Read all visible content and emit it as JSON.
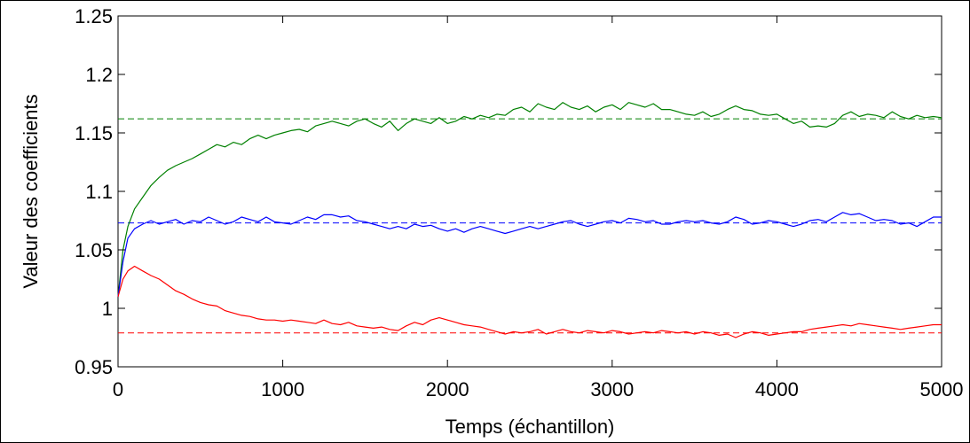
{
  "chart_data": {
    "type": "line",
    "title": "",
    "xlabel": "Temps (échantillon)",
    "ylabel": "Valeur des coefficients",
    "xlim": [
      0,
      5000
    ],
    "ylim": [
      0.95,
      1.25
    ],
    "x_ticks": [
      0,
      1000,
      2000,
      3000,
      4000,
      5000
    ],
    "y_ticks": [
      0.95,
      1.0,
      1.05,
      1.1,
      1.15,
      1.2,
      1.25
    ],
    "x_tick_labels": [
      "0",
      "1000",
      "2000",
      "3000",
      "4000",
      "5000"
    ],
    "y_tick_labels": [
      "0.95",
      "1",
      "1.05",
      "1.1",
      "1.15",
      "1.2",
      "1.25"
    ],
    "grid": false,
    "legend": "none",
    "reference_lines": [
      {
        "y": 1.162,
        "color": "#008000",
        "style": "dashed"
      },
      {
        "y": 1.073,
        "color": "#0000ff",
        "style": "dashed"
      },
      {
        "y": 0.979,
        "color": "#ff0000",
        "style": "dashed"
      }
    ],
    "series": [
      {
        "color": "#008000",
        "x": [
          0,
          30,
          60,
          100,
          150,
          200,
          250,
          300,
          350,
          400,
          450,
          500,
          550,
          600,
          650,
          700,
          750,
          800,
          850,
          900,
          950,
          1000,
          1050,
          1100,
          1150,
          1200,
          1250,
          1300,
          1350,
          1400,
          1450,
          1500,
          1550,
          1600,
          1650,
          1700,
          1750,
          1800,
          1850,
          1900,
          1950,
          2000,
          2050,
          2100,
          2150,
          2200,
          2250,
          2300,
          2350,
          2400,
          2450,
          2500,
          2550,
          2600,
          2650,
          2700,
          2750,
          2800,
          2850,
          2900,
          2950,
          3000,
          3050,
          3100,
          3150,
          3200,
          3250,
          3300,
          3350,
          3400,
          3450,
          3500,
          3550,
          3600,
          3650,
          3700,
          3750,
          3800,
          3850,
          3900,
          3950,
          4000,
          4050,
          4100,
          4150,
          4200,
          4250,
          4300,
          4350,
          4400,
          4450,
          4500,
          4550,
          4600,
          4650,
          4700,
          4750,
          4800,
          4850,
          4900,
          4950,
          5000
        ],
        "y": [
          1.01,
          1.05,
          1.07,
          1.085,
          1.095,
          1.105,
          1.112,
          1.118,
          1.122,
          1.125,
          1.128,
          1.132,
          1.136,
          1.14,
          1.138,
          1.142,
          1.14,
          1.145,
          1.148,
          1.145,
          1.148,
          1.15,
          1.152,
          1.153,
          1.151,
          1.156,
          1.158,
          1.16,
          1.158,
          1.156,
          1.16,
          1.162,
          1.158,
          1.155,
          1.16,
          1.152,
          1.158,
          1.162,
          1.16,
          1.158,
          1.163,
          1.158,
          1.16,
          1.164,
          1.162,
          1.165,
          1.163,
          1.166,
          1.165,
          1.17,
          1.172,
          1.168,
          1.175,
          1.172,
          1.17,
          1.176,
          1.172,
          1.17,
          1.173,
          1.168,
          1.172,
          1.174,
          1.17,
          1.176,
          1.174,
          1.172,
          1.175,
          1.17,
          1.17,
          1.168,
          1.166,
          1.165,
          1.168,
          1.164,
          1.166,
          1.17,
          1.173,
          1.17,
          1.169,
          1.166,
          1.165,
          1.166,
          1.162,
          1.158,
          1.16,
          1.155,
          1.156,
          1.155,
          1.158,
          1.165,
          1.168,
          1.164,
          1.166,
          1.165,
          1.163,
          1.168,
          1.164,
          1.162,
          1.165,
          1.163,
          1.164,
          1.163
        ]
      },
      {
        "color": "#0000ff",
        "x": [
          0,
          30,
          60,
          100,
          150,
          200,
          250,
          300,
          350,
          400,
          450,
          500,
          550,
          600,
          650,
          700,
          750,
          800,
          850,
          900,
          950,
          1000,
          1050,
          1100,
          1150,
          1200,
          1250,
          1300,
          1350,
          1400,
          1450,
          1500,
          1550,
          1600,
          1650,
          1700,
          1750,
          1800,
          1850,
          1900,
          1950,
          2000,
          2050,
          2100,
          2150,
          2200,
          2250,
          2300,
          2350,
          2400,
          2450,
          2500,
          2550,
          2600,
          2650,
          2700,
          2750,
          2800,
          2850,
          2900,
          2950,
          3000,
          3050,
          3100,
          3150,
          3200,
          3250,
          3300,
          3350,
          3400,
          3450,
          3500,
          3550,
          3600,
          3650,
          3700,
          3750,
          3800,
          3850,
          3900,
          3950,
          4000,
          4050,
          4100,
          4150,
          4200,
          4250,
          4300,
          4350,
          4400,
          4450,
          4500,
          4550,
          4600,
          4650,
          4700,
          4750,
          4800,
          4850,
          4900,
          4950,
          5000
        ],
        "y": [
          1.01,
          1.04,
          1.06,
          1.068,
          1.072,
          1.075,
          1.072,
          1.074,
          1.076,
          1.072,
          1.075,
          1.074,
          1.078,
          1.075,
          1.072,
          1.074,
          1.078,
          1.076,
          1.074,
          1.078,
          1.074,
          1.073,
          1.072,
          1.075,
          1.078,
          1.076,
          1.08,
          1.08,
          1.078,
          1.079,
          1.075,
          1.074,
          1.072,
          1.07,
          1.068,
          1.07,
          1.068,
          1.072,
          1.07,
          1.071,
          1.068,
          1.066,
          1.068,
          1.065,
          1.068,
          1.07,
          1.068,
          1.066,
          1.064,
          1.066,
          1.068,
          1.07,
          1.068,
          1.07,
          1.072,
          1.074,
          1.075,
          1.072,
          1.07,
          1.072,
          1.074,
          1.075,
          1.073,
          1.077,
          1.076,
          1.074,
          1.075,
          1.072,
          1.072,
          1.074,
          1.075,
          1.074,
          1.075,
          1.073,
          1.072,
          1.074,
          1.078,
          1.076,
          1.072,
          1.073,
          1.075,
          1.074,
          1.072,
          1.07,
          1.072,
          1.075,
          1.076,
          1.074,
          1.078,
          1.082,
          1.08,
          1.081,
          1.078,
          1.075,
          1.076,
          1.075,
          1.072,
          1.073,
          1.07,
          1.074,
          1.078,
          1.078
        ]
      },
      {
        "color": "#ff0000",
        "x": [
          0,
          30,
          60,
          100,
          150,
          200,
          250,
          300,
          350,
          400,
          450,
          500,
          550,
          600,
          650,
          700,
          750,
          800,
          850,
          900,
          950,
          1000,
          1050,
          1100,
          1150,
          1200,
          1250,
          1300,
          1350,
          1400,
          1450,
          1500,
          1550,
          1600,
          1650,
          1700,
          1750,
          1800,
          1850,
          1900,
          1950,
          2000,
          2050,
          2100,
          2150,
          2200,
          2250,
          2300,
          2350,
          2400,
          2450,
          2500,
          2550,
          2600,
          2650,
          2700,
          2750,
          2800,
          2850,
          2900,
          2950,
          3000,
          3050,
          3100,
          3150,
          3200,
          3250,
          3300,
          3350,
          3400,
          3450,
          3500,
          3550,
          3600,
          3650,
          3700,
          3750,
          3800,
          3850,
          3900,
          3950,
          4000,
          4050,
          4100,
          4150,
          4200,
          4250,
          4300,
          4350,
          4400,
          4450,
          4500,
          4550,
          4600,
          4650,
          4700,
          4750,
          4800,
          4850,
          4900,
          4950,
          5000
        ],
        "y": [
          1.01,
          1.025,
          1.032,
          1.036,
          1.032,
          1.028,
          1.025,
          1.02,
          1.015,
          1.012,
          1.008,
          1.005,
          1.003,
          1.002,
          0.998,
          0.996,
          0.994,
          0.993,
          0.991,
          0.99,
          0.99,
          0.989,
          0.99,
          0.989,
          0.988,
          0.987,
          0.99,
          0.987,
          0.986,
          0.988,
          0.985,
          0.984,
          0.983,
          0.984,
          0.982,
          0.981,
          0.985,
          0.988,
          0.986,
          0.99,
          0.992,
          0.99,
          0.988,
          0.986,
          0.985,
          0.984,
          0.982,
          0.98,
          0.978,
          0.98,
          0.979,
          0.98,
          0.982,
          0.978,
          0.98,
          0.982,
          0.98,
          0.979,
          0.981,
          0.98,
          0.979,
          0.981,
          0.98,
          0.978,
          0.979,
          0.98,
          0.979,
          0.981,
          0.98,
          0.979,
          0.98,
          0.978,
          0.98,
          0.979,
          0.977,
          0.978,
          0.975,
          0.978,
          0.98,
          0.979,
          0.977,
          0.978,
          0.979,
          0.98,
          0.98,
          0.982,
          0.983,
          0.984,
          0.985,
          0.986,
          0.985,
          0.987,
          0.986,
          0.985,
          0.984,
          0.983,
          0.982,
          0.983,
          0.984,
          0.985,
          0.986,
          0.986
        ]
      }
    ]
  }
}
